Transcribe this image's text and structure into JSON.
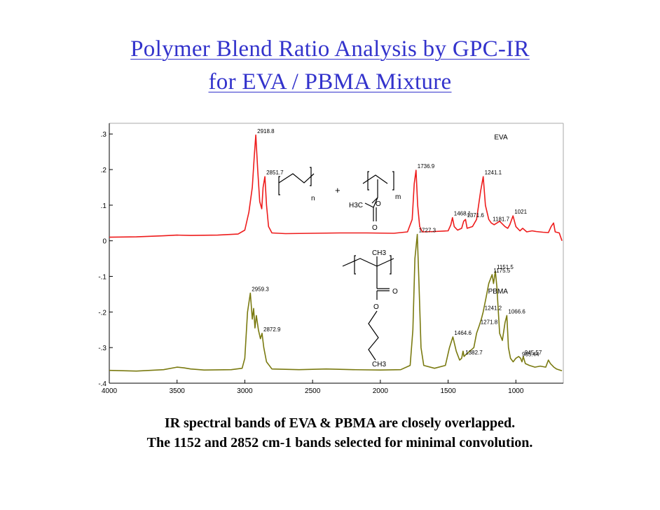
{
  "slide": {
    "title_line1": "Polymer Blend Ratio Analysis by GPC-IR",
    "title_line2": "for EVA / PBMA Mixture",
    "caption_line1": "IR spectral bands of EVA & PBMA are closely overlapped.",
    "caption_line2": "The 1152 and 2852 cm-1 bands selected for minimal convolution."
  },
  "colors": {
    "eva": "#ee1c1c",
    "pbma": "#7a7a10",
    "title": "#3333cc",
    "grid": "#000000"
  },
  "chart_data": {
    "type": "line",
    "xlim": [
      4000,
      650
    ],
    "ylim": [
      -0.4,
      0.33
    ],
    "x_ticks": [
      4000,
      3500,
      3000,
      2500,
      2000,
      1500,
      1000
    ],
    "x_tick_labels": [
      "4000",
      "3500",
      "3000",
      "2500",
      "2000",
      "1500",
      "1000"
    ],
    "y_ticks": [
      0.3,
      0.2,
      0.1,
      0,
      -0.1,
      -0.2,
      -0.3,
      -0.4
    ],
    "y_tick_labels": [
      ".3",
      ".2",
      ".1",
      "0",
      "-.1",
      "-.2",
      "-.3",
      "-.4"
    ],
    "series": [
      {
        "name": "EVA",
        "color": "#ee1c1c",
        "points": [
          [
            4000,
            0.01
          ],
          [
            3800,
            0.011
          ],
          [
            3600,
            0.014
          ],
          [
            3500,
            0.016
          ],
          [
            3400,
            0.015
          ],
          [
            3200,
            0.016
          ],
          [
            3050,
            0.019
          ],
          [
            3000,
            0.03
          ],
          [
            2970,
            0.08
          ],
          [
            2945,
            0.15
          ],
          [
            2930,
            0.24
          ],
          [
            2918.8,
            0.297
          ],
          [
            2905,
            0.2
          ],
          [
            2890,
            0.11
          ],
          [
            2875,
            0.09
          ],
          [
            2865,
            0.15
          ],
          [
            2851.7,
            0.18
          ],
          [
            2840,
            0.1
          ],
          [
            2825,
            0.04
          ],
          [
            2800,
            0.022
          ],
          [
            2700,
            0.02
          ],
          [
            2500,
            0.021
          ],
          [
            2300,
            0.022
          ],
          [
            2100,
            0.022
          ],
          [
            1900,
            0.021
          ],
          [
            1800,
            0.025
          ],
          [
            1765,
            0.06
          ],
          [
            1750,
            0.16
          ],
          [
            1736.9,
            0.198
          ],
          [
            1725,
            0.1
          ],
          [
            1710,
            0.04
          ],
          [
            1690,
            0.025
          ],
          [
            1600,
            0.026
          ],
          [
            1500,
            0.028
          ],
          [
            1480,
            0.045
          ],
          [
            1468.1,
            0.065
          ],
          [
            1455,
            0.04
          ],
          [
            1430,
            0.03
          ],
          [
            1400,
            0.035
          ],
          [
            1385,
            0.055
          ],
          [
            1371.6,
            0.06
          ],
          [
            1360,
            0.035
          ],
          [
            1320,
            0.04
          ],
          [
            1290,
            0.06
          ],
          [
            1260,
            0.14
          ],
          [
            1241.1,
            0.18
          ],
          [
            1225,
            0.1
          ],
          [
            1200,
            0.06
          ],
          [
            1181.7,
            0.05
          ],
          [
            1160,
            0.045
          ],
          [
            1120,
            0.055
          ],
          [
            1080,
            0.04
          ],
          [
            1060,
            0.035
          ],
          [
            1045,
            0.045
          ],
          [
            1021,
            0.07
          ],
          [
            1000,
            0.04
          ],
          [
            970,
            0.028
          ],
          [
            950,
            0.035
          ],
          [
            920,
            0.025
          ],
          [
            880,
            0.028
          ],
          [
            850,
            0.026
          ],
          [
            800,
            0.024
          ],
          [
            760,
            0.023
          ],
          [
            740,
            0.04
          ],
          [
            722,
            0.05
          ],
          [
            710,
            0.025
          ],
          [
            680,
            0.022
          ],
          [
            660,
            0.0
          ]
        ]
      },
      {
        "name": "PBMA",
        "color": "#7a7a10",
        "points": [
          [
            4000,
            -0.364
          ],
          [
            3800,
            -0.366
          ],
          [
            3600,
            -0.362
          ],
          [
            3500,
            -0.355
          ],
          [
            3450,
            -0.357
          ],
          [
            3400,
            -0.36
          ],
          [
            3300,
            -0.363
          ],
          [
            3100,
            -0.362
          ],
          [
            3020,
            -0.358
          ],
          [
            3000,
            -0.33
          ],
          [
            2980,
            -0.2
          ],
          [
            2959.3,
            -0.147
          ],
          [
            2945,
            -0.22
          ],
          [
            2935,
            -0.19
          ],
          [
            2925,
            -0.245
          ],
          [
            2915,
            -0.21
          ],
          [
            2900,
            -0.25
          ],
          [
            2885,
            -0.275
          ],
          [
            2872.9,
            -0.26
          ],
          [
            2860,
            -0.3
          ],
          [
            2840,
            -0.34
          ],
          [
            2800,
            -0.36
          ],
          [
            2600,
            -0.362
          ],
          [
            2400,
            -0.36
          ],
          [
            2200,
            -0.362
          ],
          [
            2000,
            -0.363
          ],
          [
            1850,
            -0.362
          ],
          [
            1780,
            -0.35
          ],
          [
            1760,
            -0.25
          ],
          [
            1745,
            -0.05
          ],
          [
            1727.3,
            0.018
          ],
          [
            1715,
            -0.12
          ],
          [
            1700,
            -0.3
          ],
          [
            1680,
            -0.35
          ],
          [
            1600,
            -0.358
          ],
          [
            1520,
            -0.35
          ],
          [
            1490,
            -0.3
          ],
          [
            1464.6,
            -0.27
          ],
          [
            1440,
            -0.31
          ],
          [
            1415,
            -0.335
          ],
          [
            1400,
            -0.33
          ],
          [
            1390,
            -0.31
          ],
          [
            1382.7,
            -0.325
          ],
          [
            1370,
            -0.32
          ],
          [
            1340,
            -0.31
          ],
          [
            1310,
            -0.3
          ],
          [
            1290,
            -0.26
          ],
          [
            1271.8,
            -0.24
          ],
          [
            1255,
            -0.22
          ],
          [
            1241.2,
            -0.2
          ],
          [
            1220,
            -0.16
          ],
          [
            1200,
            -0.12
          ],
          [
            1175.5,
            -0.095
          ],
          [
            1165,
            -0.12
          ],
          [
            1151.5,
            -0.085
          ],
          [
            1140,
            -0.13
          ],
          [
            1120,
            -0.26
          ],
          [
            1100,
            -0.28
          ],
          [
            1080,
            -0.23
          ],
          [
            1066.6,
            -0.21
          ],
          [
            1055,
            -0.3
          ],
          [
            1040,
            -0.33
          ],
          [
            1020,
            -0.34
          ],
          [
            1000,
            -0.33
          ],
          [
            980,
            -0.325
          ],
          [
            965.44,
            -0.33
          ],
          [
            955,
            -0.34
          ],
          [
            945.57,
            -0.325
          ],
          [
            930,
            -0.345
          ],
          [
            900,
            -0.35
          ],
          [
            860,
            -0.355
          ],
          [
            820,
            -0.352
          ],
          [
            780,
            -0.355
          ],
          [
            760,
            -0.335
          ],
          [
            745,
            -0.345
          ],
          [
            720,
            -0.355
          ],
          [
            700,
            -0.36
          ],
          [
            660,
            -0.365
          ]
        ]
      }
    ],
    "labels": [
      {
        "text": "2918.8",
        "x": 2918.8,
        "y": 0.297
      },
      {
        "text": "2851.7",
        "x": 2851.7,
        "y": 0.18
      },
      {
        "text": "1736.9",
        "x": 1736.9,
        "y": 0.198
      },
      {
        "text": "1241.1",
        "x": 1241.1,
        "y": 0.18
      },
      {
        "text": "1371.6",
        "x": 1371.6,
        "y": 0.06
      },
      {
        "text": "1468.1",
        "x": 1468.1,
        "y": 0.065
      },
      {
        "text": "1181.7",
        "x": 1181.7,
        "y": 0.05
      },
      {
        "text": "1021",
        "x": 1021,
        "y": 0.07
      },
      {
        "text": "1727.3",
        "x": 1727.3,
        "y": 0.018
      },
      {
        "text": "1151.5",
        "x": 1151.5,
        "y": -0.085
      },
      {
        "text": "1175.5",
        "x": 1175.5,
        "y": -0.095
      },
      {
        "text": "2959.3",
        "x": 2959.3,
        "y": -0.147
      },
      {
        "text": "1066.6",
        "x": 1066.6,
        "y": -0.21
      },
      {
        "text": "1241.2",
        "x": 1241.2,
        "y": -0.2
      },
      {
        "text": "2872.9",
        "x": 2872.9,
        "y": -0.26
      },
      {
        "text": "1271.8",
        "x": 1271.8,
        "y": -0.24
      },
      {
        "text": "1464.6",
        "x": 1464.6,
        "y": -0.27
      },
      {
        "text": "945.57",
        "x": 945.57,
        "y": -0.325
      },
      {
        "text": "965.44",
        "x": 965.44,
        "y": -0.33
      },
      {
        "text": "1382.7",
        "x": 1382.7,
        "y": -0.325
      }
    ],
    "legend": [
      "EVA",
      "PBMA"
    ],
    "structures": {
      "eva_sub_n": "n",
      "eva_sub_m": "m",
      "plus": "+",
      "methyl_group": "H3C",
      "eva_carbonyl_o": "O",
      "eva_ester_o": "O",
      "pbma_methyl": "CH3",
      "pbma_carbonyl_o": "O",
      "pbma_ester_o": "O",
      "pbma_terminal_methyl": "CH3"
    }
  }
}
